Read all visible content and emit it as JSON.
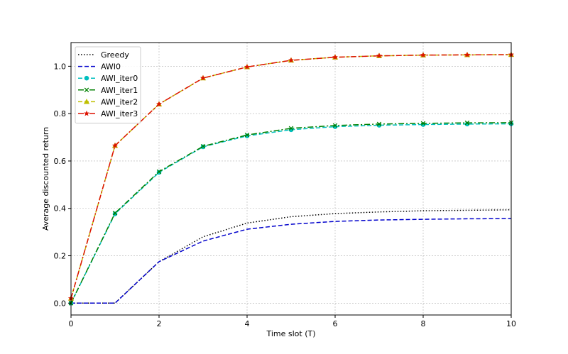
{
  "chart_data": {
    "type": "line",
    "title": "",
    "xlabel": "Time slot (T)",
    "ylabel": "Average discounted return",
    "xlim": [
      0,
      10
    ],
    "ylim": [
      -0.05,
      1.1
    ],
    "xticks": [
      0,
      2,
      4,
      6,
      8,
      10
    ],
    "yticks": [
      0.0,
      0.2,
      0.4,
      0.6,
      0.8,
      1.0
    ],
    "xtick_labels": [
      "0",
      "2",
      "4",
      "6",
      "8",
      "10"
    ],
    "ytick_labels": [
      "0.0",
      "0.2",
      "0.4",
      "0.6",
      "0.8",
      "1.0"
    ],
    "grid": true,
    "legend_position": "top-left",
    "x": [
      0,
      1,
      2,
      3,
      4,
      5,
      6,
      7,
      8,
      9,
      10
    ],
    "series": [
      {
        "name": "Greedy",
        "color": "#000000",
        "dash": "dotted",
        "marker": "none",
        "values": [
          0.0,
          0.0,
          0.175,
          0.28,
          0.338,
          0.365,
          0.378,
          0.385,
          0.39,
          0.392,
          0.394
        ]
      },
      {
        "name": "AWI0",
        "color": "#0000cc",
        "dash": "dashed",
        "marker": "none",
        "values": [
          0.0,
          0.0,
          0.175,
          0.262,
          0.312,
          0.333,
          0.345,
          0.351,
          0.354,
          0.356,
          0.357
        ]
      },
      {
        "name": "AWI_iter0",
        "color": "#00bfbf",
        "dash": "dashed",
        "marker": "circle",
        "values": [
          0.0,
          0.377,
          0.552,
          0.66,
          0.706,
          0.732,
          0.745,
          0.751,
          0.754,
          0.756,
          0.757
        ]
      },
      {
        "name": "AWI_iter1",
        "color": "#008000",
        "dash": "dashdot",
        "marker": "x",
        "values": [
          0.0,
          0.38,
          0.555,
          0.662,
          0.71,
          0.738,
          0.75,
          0.756,
          0.759,
          0.761,
          0.762
        ]
      },
      {
        "name": "AWI_iter2",
        "color": "#bfbf00",
        "dash": "dashed",
        "marker": "triangle",
        "values": [
          0.02,
          0.665,
          0.84,
          0.95,
          0.997,
          1.025,
          1.038,
          1.044,
          1.047,
          1.048,
          1.049
        ]
      },
      {
        "name": "AWI_iter3",
        "color": "#dd1100",
        "dash": "dashdot",
        "marker": "star",
        "values": [
          0.02,
          0.665,
          0.84,
          0.95,
          0.997,
          1.025,
          1.038,
          1.044,
          1.047,
          1.048,
          1.049
        ]
      }
    ]
  }
}
